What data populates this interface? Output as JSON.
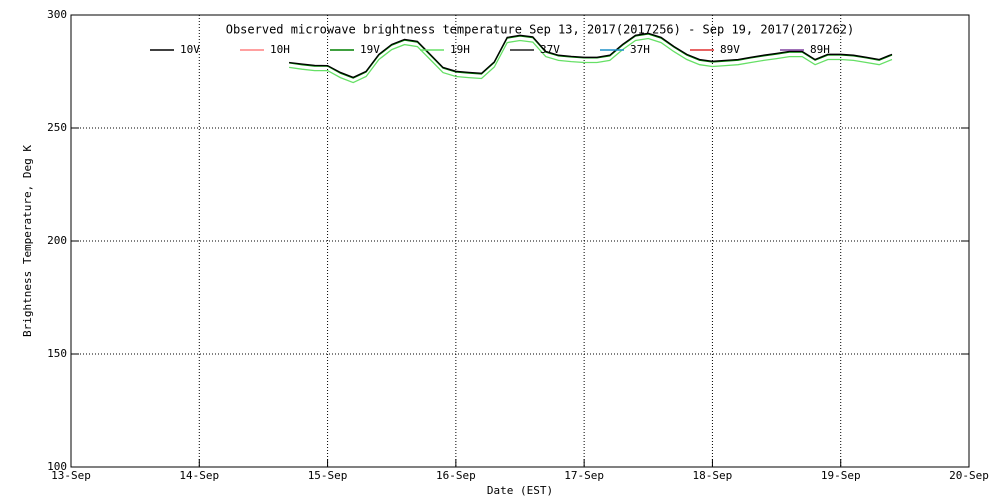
{
  "chart_data": {
    "type": "line",
    "title": "Observed microwave brightness temperature Sep 13, 2017(2017256) - Sep 19, 2017(2017262)",
    "x_label": "Date (EST)",
    "y_label": "Brightness Temperature, Deg K",
    "xlim": [
      0,
      7
    ],
    "xticks": [
      {
        "value": 0,
        "label": "13-Sep"
      },
      {
        "value": 1,
        "label": "14-Sep"
      },
      {
        "value": 2,
        "label": "15-Sep"
      },
      {
        "value": 3,
        "label": "16-Sep"
      },
      {
        "value": 4,
        "label": "17-Sep"
      },
      {
        "value": 5,
        "label": "18-Sep"
      },
      {
        "value": 6,
        "label": "19-Sep"
      },
      {
        "value": 7,
        "label": "20-Sep"
      }
    ],
    "ylim": [
      100,
      300
    ],
    "yticks": [
      100,
      150,
      200,
      250,
      300
    ],
    "grid": true,
    "x": [
      1.7,
      1.8,
      1.9,
      2.0,
      2.1,
      2.2,
      2.3,
      2.4,
      2.5,
      2.6,
      2.7,
      2.8,
      2.9,
      3.0,
      3.1,
      3.2,
      3.3,
      3.4,
      3.5,
      3.6,
      3.7,
      3.8,
      3.9,
      4.0,
      4.1,
      4.2,
      4.3,
      4.4,
      4.5,
      4.6,
      4.7,
      4.8,
      4.9,
      5.0,
      5.1,
      5.2,
      5.3,
      5.4,
      5.5,
      5.6,
      5.7,
      5.8,
      5.9,
      6.0,
      6.1,
      6.2,
      6.3,
      6.4
    ],
    "series": [
      {
        "name": "10V",
        "color": "#000000",
        "values": [
          279.0,
          278.3,
          277.7,
          277.6,
          274.6,
          272.4,
          275.1,
          282.6,
          287.0,
          289.2,
          288.3,
          282.6,
          276.8,
          275.1,
          274.6,
          274.2,
          279.3,
          290.1,
          291.0,
          290.3,
          283.9,
          282.2,
          281.7,
          281.3,
          281.3,
          282.2,
          287.0,
          291.0,
          291.9,
          290.1,
          286.1,
          282.6,
          280.3,
          279.5,
          279.9,
          280.3,
          281.3,
          282.2,
          283.0,
          283.9,
          283.9,
          280.3,
          282.6,
          282.6,
          282.2,
          281.3,
          280.3,
          282.6
        ]
      },
      {
        "name": "10H",
        "color": "#ff8080",
        "values": [
          null,
          null,
          null,
          null,
          null,
          null,
          null,
          null,
          null,
          null,
          null,
          null,
          null,
          null,
          null,
          null,
          null,
          null,
          null,
          null,
          null,
          null,
          null,
          null,
          null,
          null,
          null,
          null,
          null,
          null,
          null,
          null,
          null,
          null,
          null,
          null,
          null,
          null,
          null,
          null,
          null,
          null,
          null,
          null,
          null,
          null,
          null,
          null
        ]
      },
      {
        "name": "19V",
        "color": "#008000",
        "values": [
          278.8,
          278.0,
          277.4,
          277.4,
          274.3,
          272.1,
          274.8,
          282.3,
          286.7,
          288.9,
          288.0,
          282.3,
          276.5,
          274.8,
          274.3,
          273.9,
          279.0,
          289.8,
          290.7,
          290.0,
          283.6,
          281.9,
          281.4,
          281.0,
          281.0,
          281.9,
          286.7,
          290.7,
          291.6,
          289.8,
          285.8,
          282.3,
          280.0,
          279.2,
          279.6,
          280.0,
          281.0,
          281.9,
          282.7,
          283.6,
          283.6,
          280.0,
          282.3,
          282.3,
          281.9,
          281.0,
          280.0,
          282.3
        ]
      },
      {
        "name": "19H",
        "color": "#66e066",
        "values": [
          276.8,
          276.0,
          275.4,
          275.4,
          272.3,
          270.1,
          272.8,
          280.3,
          284.7,
          286.9,
          286.0,
          280.3,
          274.5,
          272.8,
          272.3,
          271.9,
          277.0,
          287.8,
          288.7,
          288.0,
          281.6,
          279.9,
          279.4,
          279.0,
          279.0,
          279.9,
          284.7,
          288.7,
          289.6,
          287.8,
          283.8,
          280.3,
          278.0,
          277.2,
          277.6,
          278.0,
          279.0,
          279.9,
          280.7,
          281.6,
          281.6,
          278.0,
          280.3,
          280.3,
          279.9,
          279.0,
          278.0,
          280.3
        ]
      },
      {
        "name": "37V",
        "color": "#202020",
        "values": [
          null,
          null,
          null,
          null,
          null,
          null,
          null,
          null,
          null,
          null,
          null,
          null,
          null,
          null,
          null,
          null,
          null,
          null,
          null,
          null,
          null,
          null,
          null,
          null,
          null,
          null,
          null,
          null,
          null,
          null,
          null,
          null,
          null,
          null,
          null,
          null,
          null,
          null,
          null,
          null,
          null,
          null,
          null,
          null,
          null,
          null,
          null,
          null
        ]
      },
      {
        "name": "37H",
        "color": "#1e90c8",
        "values": [
          null,
          null,
          null,
          null,
          null,
          null,
          null,
          null,
          null,
          null,
          null,
          null,
          null,
          null,
          null,
          null,
          null,
          null,
          null,
          null,
          null,
          null,
          null,
          null,
          null,
          null,
          null,
          null,
          null,
          null,
          null,
          null,
          null,
          null,
          null,
          null,
          null,
          null,
          null,
          null,
          null,
          null,
          null,
          null,
          null,
          null,
          null,
          null
        ]
      },
      {
        "name": "89V",
        "color": "#e03030",
        "values": [
          null,
          null,
          null,
          null,
          null,
          null,
          null,
          null,
          null,
          null,
          null,
          null,
          null,
          null,
          null,
          null,
          null,
          null,
          null,
          null,
          null,
          null,
          null,
          null,
          null,
          null,
          null,
          null,
          null,
          null,
          null,
          null,
          null,
          null,
          null,
          null,
          null,
          null,
          null,
          null,
          null,
          null,
          null,
          null,
          null,
          null,
          null,
          null
        ]
      },
      {
        "name": "89H",
        "color": "#8040a0",
        "values": [
          null,
          null,
          null,
          null,
          null,
          null,
          null,
          null,
          null,
          null,
          null,
          null,
          null,
          null,
          null,
          null,
          null,
          null,
          null,
          null,
          null,
          null,
          null,
          null,
          null,
          null,
          null,
          null,
          null,
          null,
          null,
          null,
          null,
          null,
          null,
          null,
          null,
          null,
          null,
          null,
          null,
          null,
          null,
          null,
          null,
          null,
          null,
          null
        ]
      }
    ]
  }
}
